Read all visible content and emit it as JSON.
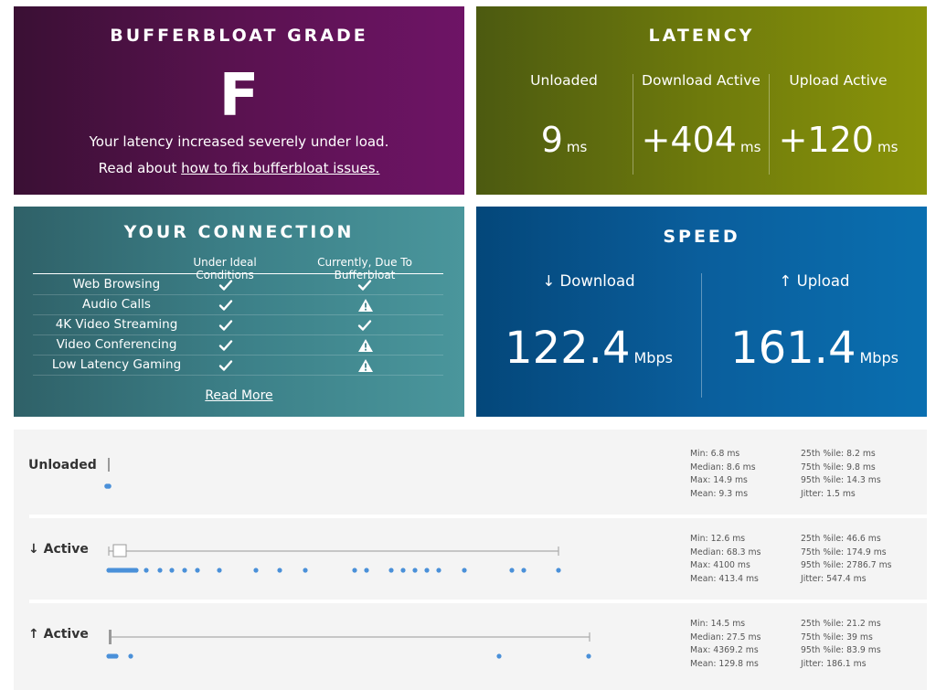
{
  "grade": {
    "title": "BUFFERBLOAT GRADE",
    "letter": "F",
    "message": "Your latency increased severely under load.",
    "read_prefix": "Read about ",
    "link_text": "how to fix bufferbloat issues."
  },
  "latency": {
    "title": "LATENCY",
    "columns": [
      {
        "label": "Unloaded",
        "value": "9",
        "unit": "ms"
      },
      {
        "label": "Download Active",
        "value": "+404",
        "unit": "ms"
      },
      {
        "label": "Upload Active",
        "value": "+120",
        "unit": "ms"
      }
    ]
  },
  "connection": {
    "title": "YOUR CONNECTION",
    "header_ideal": "Under Ideal Conditions",
    "header_current": "Currently, Due To Bufferbloat",
    "rows": [
      {
        "name": "Web Browsing",
        "ideal": "check",
        "current": "check"
      },
      {
        "name": "Audio Calls",
        "ideal": "check",
        "current": "warning"
      },
      {
        "name": "4K Video Streaming",
        "ideal": "check",
        "current": "check"
      },
      {
        "name": "Video Conferencing",
        "ideal": "check",
        "current": "warning"
      },
      {
        "name": "Low Latency Gaming",
        "ideal": "check",
        "current": "warning"
      }
    ],
    "read_more": "Read More"
  },
  "speed": {
    "title": "SPEED",
    "download": {
      "label": "↓ Download",
      "value": "122.4",
      "unit": "Mbps"
    },
    "upload": {
      "label": "↑ Upload",
      "value": "161.4",
      "unit": "Mbps"
    }
  },
  "stats": {
    "rows": [
      {
        "label": "Unloaded",
        "col1": [
          "Min: 6.8 ms",
          "Median: 8.6 ms",
          "Max: 14.9 ms",
          "Mean: 9.3 ms"
        ],
        "col2": [
          "25th %ile: 8.2 ms",
          "75th %ile: 9.8 ms",
          "95th %ile: 14.3 ms",
          "Jitter: 1.5 ms"
        ]
      },
      {
        "label": "↓ Active",
        "col1": [
          "Min: 12.6 ms",
          "Median: 68.3 ms",
          "Max: 4100 ms",
          "Mean: 413.4 ms"
        ],
        "col2": [
          "25th %ile: 46.6 ms",
          "75th %ile: 174.9 ms",
          "95th %ile: 2786.7 ms",
          "Jitter: 547.4 ms"
        ]
      },
      {
        "label": "↑ Active",
        "col1": [
          "Min: 14.5 ms",
          "Median: 27.5 ms",
          "Max: 4369.2 ms",
          "Mean: 129.8 ms"
        ],
        "col2": [
          "25th %ile: 21.2 ms",
          "75th %ile: 39 ms",
          "95th %ile: 83.9 ms",
          "Jitter: 186.1 ms"
        ]
      }
    ]
  },
  "colors": {
    "accent_blue": "#4a90d9",
    "whisker_gray": "#aaaaaa"
  }
}
